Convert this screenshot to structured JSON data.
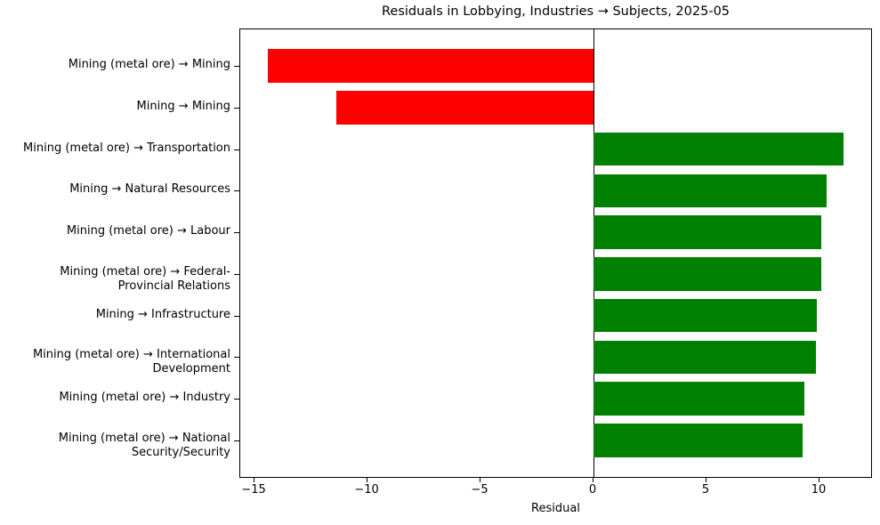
{
  "chart_data": {
    "type": "bar",
    "orientation": "horizontal",
    "title": "Residuals in Lobbying, Industries → Subjects, 2025-05",
    "xlabel": "Residual",
    "ylabel": "",
    "xlim": [
      -15.67,
      12.32
    ],
    "xticks": [
      -15,
      -10,
      -5,
      0,
      5,
      10
    ],
    "xtick_labels": [
      "−15",
      "−10",
      "−5",
      "0",
      "5",
      "10"
    ],
    "grid": false,
    "legend": null,
    "zero_line": true,
    "categories": [
      "Mining (metal ore) → Mining",
      "Mining → Mining",
      "Mining (metal ore) → Transportation",
      "Mining → Natural Resources",
      "Mining (metal ore) → Labour",
      "Mining (metal ore) → Federal-\nProvincial Relations",
      "Mining → Infrastructure",
      "Mining (metal ore) → International\nDevelopment",
      "Mining (metal ore) → Industry",
      "Mining (metal ore) → National\nSecurity/Security"
    ],
    "values": [
      -14.42,
      -11.38,
      11.05,
      10.31,
      10.07,
      10.07,
      9.87,
      9.83,
      9.32,
      9.24
    ],
    "colors": {
      "negative": "#ff0000",
      "positive": "#008000"
    }
  }
}
